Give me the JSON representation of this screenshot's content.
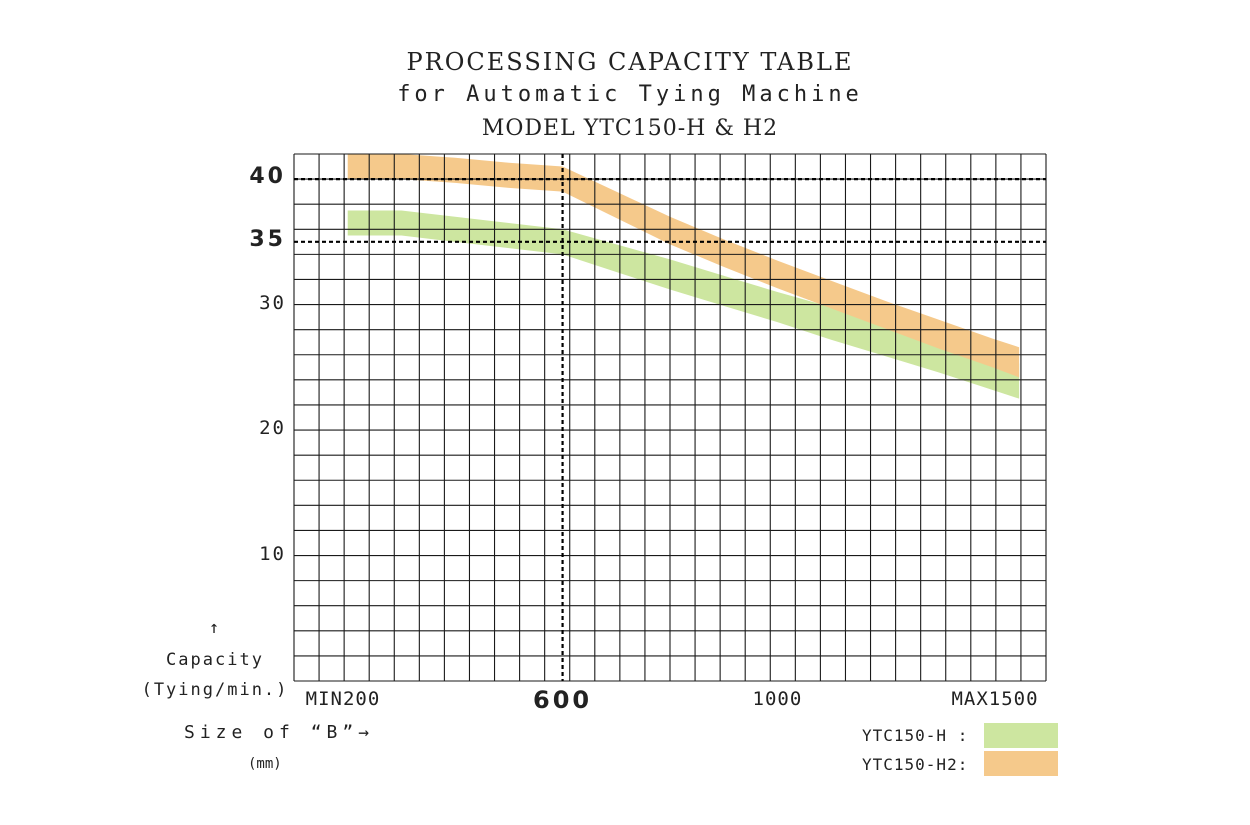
{
  "header": {
    "title": "PROCESSING CAPACITY TABLE",
    "subtitle": "for Automatic Tying Machine",
    "model": "MODEL  YTC150-H & H2"
  },
  "axes": {
    "ylabel_arrow": "↑",
    "ylabel": "Capacity",
    "ylabel_unit": "(Tying/min.)",
    "xlabel": "Size of “B”→",
    "xlabel_unit": "(mm)"
  },
  "legend": {
    "items": [
      {
        "label": "YTC150-H :",
        "color": "#cde6a0"
      },
      {
        "label": "YTC150-H2:",
        "color": "#f5c98b"
      }
    ]
  },
  "chart_data": {
    "type": "area",
    "title": "PROCESSING CAPACITY TABLE",
    "subtitle": "for Automatic Tying Machine",
    "xlabel": "Size of “B”",
    "ylabel": "Capacity (Tying/min.)",
    "xlim": [
      100,
      1500
    ],
    "ylim": [
      0,
      42
    ],
    "grid": true,
    "x_ticks": [
      {
        "value": 200,
        "label": "MIN200",
        "bold": false
      },
      {
        "value": 600,
        "label": "600",
        "bold": true
      },
      {
        "value": 1000,
        "label": "1000",
        "bold": false
      },
      {
        "value": 1500,
        "label": "MAX1500",
        "bold": false
      }
    ],
    "y_ticks": [
      {
        "value": 10,
        "label": "10",
        "bold": false
      },
      {
        "value": 20,
        "label": "20",
        "bold": false
      },
      {
        "value": 30,
        "label": "30",
        "bold": false
      },
      {
        "value": 35,
        "label": "35",
        "bold": true
      },
      {
        "value": 40,
        "label": "40",
        "bold": true
      }
    ],
    "reference_lines": {
      "x": [
        600
      ],
      "y": [
        35,
        40
      ]
    },
    "series": [
      {
        "name": "YTC150-H",
        "color": "#cde6a0",
        "x": [
          200,
          300,
          400,
          500,
          600,
          700,
          800,
          900,
          1000,
          1100,
          1200,
          1300,
          1400,
          1450
        ],
        "upper": [
          37.5,
          37.5,
          37.0,
          36.5,
          36.0,
          34.8,
          33.6,
          32.3,
          31.0,
          29.8,
          28.5,
          27.2,
          26.0,
          25.3
        ],
        "lower": [
          35.5,
          35.5,
          35.0,
          34.5,
          34.0,
          32.6,
          31.2,
          29.9,
          28.6,
          27.2,
          25.9,
          24.6,
          23.2,
          22.5
        ]
      },
      {
        "name": "YTC150-H2",
        "color": "#f5c98b",
        "x": [
          200,
          300,
          400,
          500,
          600,
          700,
          800,
          900,
          1000,
          1100,
          1200,
          1300,
          1400,
          1450
        ],
        "upper": [
          42.0,
          42.0,
          41.7,
          41.3,
          41.0,
          39.0,
          37.0,
          35.2,
          33.5,
          31.9,
          30.3,
          28.8,
          27.3,
          26.6
        ],
        "lower": [
          40.0,
          40.0,
          39.7,
          39.3,
          39.0,
          36.9,
          34.8,
          33.0,
          31.3,
          29.7,
          28.1,
          26.5,
          25.0,
          24.2
        ]
      }
    ]
  }
}
